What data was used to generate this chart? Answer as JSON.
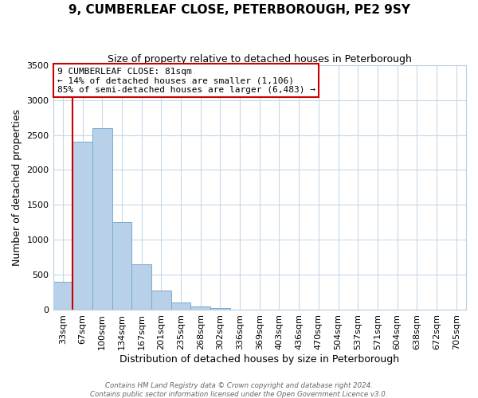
{
  "title": "9, CUMBERLEAF CLOSE, PETERBOROUGH, PE2 9SY",
  "subtitle": "Size of property relative to detached houses in Peterborough",
  "xlabel": "Distribution of detached houses by size in Peterborough",
  "ylabel": "Number of detached properties",
  "bar_labels": [
    "33sqm",
    "67sqm",
    "100sqm",
    "134sqm",
    "167sqm",
    "201sqm",
    "235sqm",
    "268sqm",
    "302sqm",
    "336sqm",
    "369sqm",
    "403sqm",
    "436sqm",
    "470sqm",
    "504sqm",
    "537sqm",
    "571sqm",
    "604sqm",
    "638sqm",
    "672sqm",
    "705sqm"
  ],
  "bar_values": [
    400,
    2400,
    2600,
    1250,
    650,
    270,
    100,
    50,
    20,
    0,
    0,
    0,
    0,
    0,
    0,
    0,
    0,
    0,
    0,
    0,
    0
  ],
  "bar_color": "#b8d0e8",
  "bar_edge_color": "#7aaacf",
  "vline_color": "#cc0000",
  "vline_x_index": 1,
  "ylim": [
    0,
    3500
  ],
  "annotation_text": "9 CUMBERLEAF CLOSE: 81sqm\n← 14% of detached houses are smaller (1,106)\n85% of semi-detached houses are larger (6,483) →",
  "annotation_box_color": "#ffffff",
  "annotation_box_edge_color": "#cc0000",
  "footer_line1": "Contains HM Land Registry data © Crown copyright and database right 2024.",
  "footer_line2": "Contains public sector information licensed under the Open Government Licence v3.0.",
  "background_color": "#ffffff",
  "grid_color": "#c8d8e8"
}
